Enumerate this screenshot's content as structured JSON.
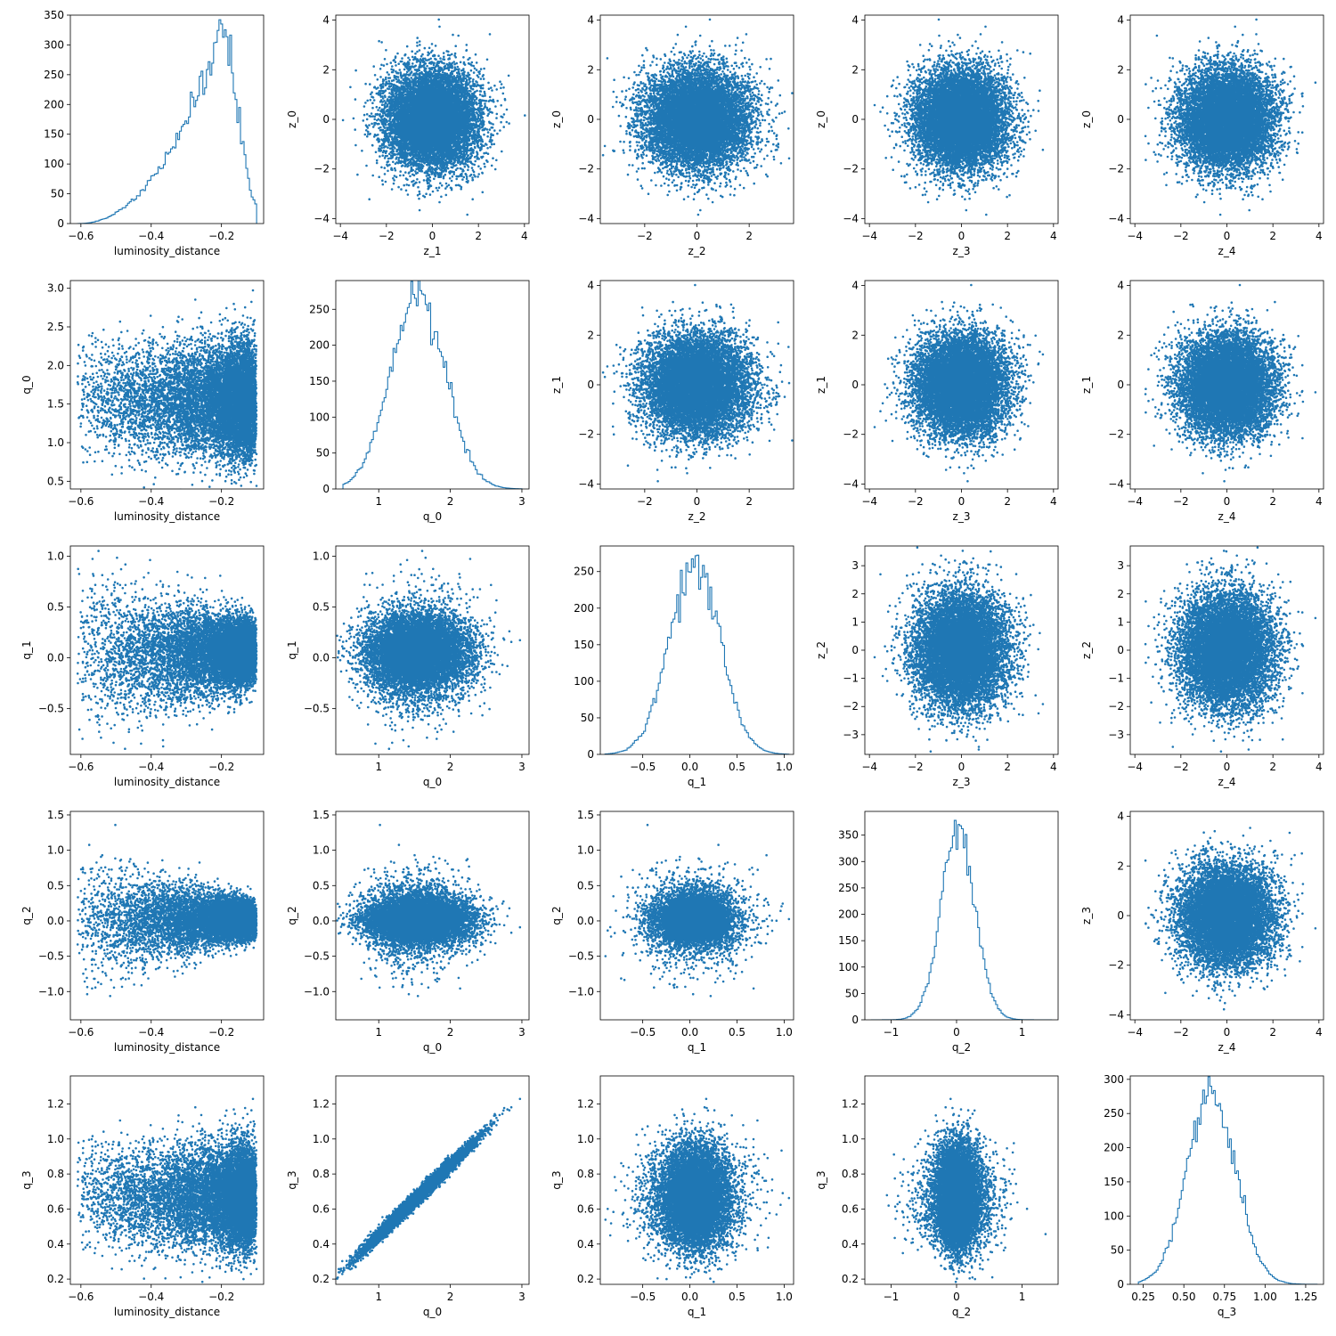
{
  "figure": {
    "color": "#1f77b4",
    "point_count": 10000,
    "grid": false,
    "legend": "none"
  },
  "chart_data": [
    {
      "type": "line",
      "row": 0,
      "col": 0,
      "panel": "hist",
      "xlabel": "luminosity_distance",
      "ylabel": "",
      "xlim": [
        -0.63,
        -0.08
      ],
      "ylim": [
        0,
        350
      ],
      "xticks": [
        -0.6,
        -0.4,
        -0.2
      ],
      "yticks": [
        0,
        50,
        100,
        150,
        200,
        250,
        300,
        350
      ],
      "dist": {
        "kind": "skew",
        "range": [
          -0.61,
          -0.1
        ],
        "peak": -0.2,
        "max": 335
      }
    },
    {
      "type": "scatter",
      "row": 0,
      "col": 1,
      "xlabel": "z_1",
      "ylabel": "z_0",
      "xlim": [
        -4.2,
        4.2
      ],
      "ylim": [
        -4.2,
        4.2
      ],
      "xticks": [
        -4,
        -2,
        0,
        2,
        4
      ],
      "yticks": [
        -4,
        -2,
        0,
        2,
        4
      ],
      "xvar": "z_1",
      "yvar": "z_0"
    },
    {
      "type": "scatter",
      "row": 0,
      "col": 2,
      "xlabel": "z_2",
      "ylabel": "z_0",
      "xlim": [
        -3.7,
        3.7
      ],
      "ylim": [
        -4.2,
        4.2
      ],
      "xticks": [
        -2,
        0,
        2
      ],
      "yticks": [
        -4,
        -2,
        0,
        2,
        4
      ],
      "xvar": "z_2",
      "yvar": "z_0"
    },
    {
      "type": "scatter",
      "row": 0,
      "col": 3,
      "xlabel": "z_3",
      "ylabel": "z_0",
      "xlim": [
        -4.2,
        4.2
      ],
      "ylim": [
        -4.2,
        4.2
      ],
      "xticks": [
        -4,
        -2,
        0,
        2,
        4
      ],
      "yticks": [
        -4,
        -2,
        0,
        2,
        4
      ],
      "xvar": "z_3",
      "yvar": "z_0"
    },
    {
      "type": "scatter",
      "row": 0,
      "col": 4,
      "xlabel": "z_4",
      "ylabel": "z_0",
      "xlim": [
        -4.2,
        4.2
      ],
      "ylim": [
        -4.2,
        4.2
      ],
      "xticks": [
        -4,
        -2,
        0,
        2,
        4
      ],
      "yticks": [
        -4,
        -2,
        0,
        2,
        4
      ],
      "xvar": "z_4",
      "yvar": "z_0"
    },
    {
      "type": "scatter",
      "row": 1,
      "col": 0,
      "xlabel": "luminosity_distance",
      "ylabel": "q_0",
      "xlim": [
        -0.63,
        -0.08
      ],
      "ylim": [
        0.4,
        3.1
      ],
      "xticks": [
        -0.6,
        -0.4,
        -0.2
      ],
      "yticks": [
        0.5,
        1.0,
        1.5,
        2.0,
        2.5,
        3.0
      ],
      "xvar": "ld",
      "yvar": "q0"
    },
    {
      "type": "line",
      "row": 1,
      "col": 1,
      "panel": "hist",
      "xlabel": "q_0",
      "ylabel": "",
      "xlim": [
        0.4,
        3.1
      ],
      "ylim": [
        0,
        290
      ],
      "xticks": [
        1,
        2,
        3
      ],
      "yticks": [
        0,
        50,
        100,
        150,
        200,
        250
      ],
      "dist": {
        "kind": "normal",
        "mean": 1.55,
        "sd": 0.38,
        "range": [
          0.5,
          3.0
        ],
        "max": 280
      }
    },
    {
      "type": "scatter",
      "row": 1,
      "col": 2,
      "xlabel": "z_2",
      "ylabel": "z_1",
      "xlim": [
        -3.7,
        3.7
      ],
      "ylim": [
        -4.2,
        4.2
      ],
      "xticks": [
        -2,
        0,
        2
      ],
      "yticks": [
        -4,
        -2,
        0,
        2,
        4
      ],
      "xvar": "z_2",
      "yvar": "z_1"
    },
    {
      "type": "scatter",
      "row": 1,
      "col": 3,
      "xlabel": "z_3",
      "ylabel": "z_1",
      "xlim": [
        -4.2,
        4.2
      ],
      "ylim": [
        -4.2,
        4.2
      ],
      "xticks": [
        -4,
        -2,
        0,
        2,
        4
      ],
      "yticks": [
        -4,
        -2,
        0,
        2,
        4
      ],
      "xvar": "z_3",
      "yvar": "z_1"
    },
    {
      "type": "scatter",
      "row": 1,
      "col": 4,
      "xlabel": "z_4",
      "ylabel": "z_1",
      "xlim": [
        -4.2,
        4.2
      ],
      "ylim": [
        -4.2,
        4.2
      ],
      "xticks": [
        -4,
        -2,
        0,
        2,
        4
      ],
      "yticks": [
        -4,
        -2,
        0,
        2,
        4
      ],
      "xvar": "z_4",
      "yvar": "z_1"
    },
    {
      "type": "scatter",
      "row": 2,
      "col": 0,
      "xlabel": "luminosity_distance",
      "ylabel": "q_1",
      "xlim": [
        -0.63,
        -0.08
      ],
      "ylim": [
        -0.95,
        1.1
      ],
      "xticks": [
        -0.6,
        -0.4,
        -0.2
      ],
      "yticks": [
        -0.5,
        0.0,
        0.5,
        1.0
      ],
      "xvar": "ld",
      "yvar": "q1"
    },
    {
      "type": "scatter",
      "row": 2,
      "col": 1,
      "xlabel": "q_0",
      "ylabel": "q_1",
      "xlim": [
        0.4,
        3.1
      ],
      "ylim": [
        -0.95,
        1.1
      ],
      "xticks": [
        1,
        2,
        3
      ],
      "yticks": [
        -0.5,
        0.0,
        0.5,
        1.0
      ],
      "xvar": "q0",
      "yvar": "q1"
    },
    {
      "type": "line",
      "row": 2,
      "col": 2,
      "panel": "hist",
      "xlabel": "q_1",
      "ylabel": "",
      "xlim": [
        -0.95,
        1.1
      ],
      "ylim": [
        0,
        285
      ],
      "xticks": [
        -0.5,
        0.0,
        0.5,
        1.0
      ],
      "yticks": [
        0,
        50,
        100,
        150,
        200,
        250
      ],
      "dist": {
        "kind": "normal",
        "mean": 0.05,
        "sd": 0.27,
        "range": [
          -0.9,
          1.05
        ],
        "max": 270
      }
    },
    {
      "type": "scatter",
      "row": 2,
      "col": 3,
      "xlabel": "z_3",
      "ylabel": "z_2",
      "xlim": [
        -4.2,
        4.2
      ],
      "ylim": [
        -3.7,
        3.7
      ],
      "xticks": [
        -4,
        -2,
        0,
        2,
        4
      ],
      "yticks": [
        -3,
        -2,
        -1,
        0,
        1,
        2,
        3
      ],
      "xvar": "z_3",
      "yvar": "z_2"
    },
    {
      "type": "scatter",
      "row": 2,
      "col": 4,
      "xlabel": "z_4",
      "ylabel": "z_2",
      "xlim": [
        -4.2,
        4.2
      ],
      "ylim": [
        -3.7,
        3.7
      ],
      "xticks": [
        -4,
        -2,
        0,
        2,
        4
      ],
      "yticks": [
        -3,
        -2,
        -1,
        0,
        1,
        2,
        3
      ],
      "xvar": "z_4",
      "yvar": "z_2"
    },
    {
      "type": "scatter",
      "row": 3,
      "col": 0,
      "xlabel": "luminosity_distance",
      "ylabel": "q_2",
      "xlim": [
        -0.63,
        -0.08
      ],
      "ylim": [
        -1.4,
        1.55
      ],
      "xticks": [
        -0.6,
        -0.4,
        -0.2
      ],
      "yticks": [
        -1.0,
        -0.5,
        0.0,
        0.5,
        1.0,
        1.5
      ],
      "xvar": "ld",
      "yvar": "q2"
    },
    {
      "type": "scatter",
      "row": 3,
      "col": 1,
      "xlabel": "q_0",
      "ylabel": "q_2",
      "xlim": [
        0.4,
        3.1
      ],
      "ylim": [
        -1.4,
        1.55
      ],
      "xticks": [
        1,
        2,
        3
      ],
      "yticks": [
        -1.0,
        -0.5,
        0.0,
        0.5,
        1.0,
        1.5
      ],
      "xvar": "q0",
      "yvar": "q2"
    },
    {
      "type": "scatter",
      "row": 3,
      "col": 2,
      "xlabel": "q_1",
      "ylabel": "q_2",
      "xlim": [
        -0.95,
        1.1
      ],
      "ylim": [
        -1.4,
        1.55
      ],
      "xticks": [
        -0.5,
        0.0,
        0.5,
        1.0
      ],
      "yticks": [
        -1.0,
        -0.5,
        0.0,
        0.5,
        1.0,
        1.5
      ],
      "xvar": "q1",
      "yvar": "q2"
    },
    {
      "type": "line",
      "row": 3,
      "col": 3,
      "panel": "hist",
      "xlabel": "q_2",
      "ylabel": "",
      "xlim": [
        -1.4,
        1.55
      ],
      "ylim": [
        0,
        395
      ],
      "xticks": [
        -1,
        0,
        1
      ],
      "yticks": [
        0,
        50,
        100,
        150,
        200,
        250,
        300,
        350
      ],
      "dist": {
        "kind": "normal",
        "mean": 0.02,
        "sd": 0.26,
        "range": [
          -1.3,
          1.45
        ],
        "max": 375
      }
    },
    {
      "type": "scatter",
      "row": 3,
      "col": 4,
      "xlabel": "z_4",
      "ylabel": "z_3",
      "xlim": [
        -4.2,
        4.2
      ],
      "ylim": [
        -4.2,
        4.2
      ],
      "xticks": [
        -4,
        -2,
        0,
        2,
        4
      ],
      "yticks": [
        -4,
        -2,
        0,
        2,
        4
      ],
      "xvar": "z_4",
      "yvar": "z_3"
    },
    {
      "type": "scatter",
      "row": 4,
      "col": 0,
      "xlabel": "luminosity_distance",
      "ylabel": "q_3",
      "xlim": [
        -0.63,
        -0.08
      ],
      "ylim": [
        0.17,
        1.36
      ],
      "xticks": [
        -0.6,
        -0.4,
        -0.2
      ],
      "yticks": [
        0.2,
        0.4,
        0.6,
        0.8,
        1.0,
        1.2
      ],
      "xvar": "ld",
      "yvar": "q3"
    },
    {
      "type": "scatter",
      "row": 4,
      "col": 1,
      "xlabel": "q_0",
      "ylabel": "q_3",
      "xlim": [
        0.4,
        3.1
      ],
      "ylim": [
        0.17,
        1.36
      ],
      "xticks": [
        1,
        2,
        3
      ],
      "yticks": [
        0.2,
        0.4,
        0.6,
        0.8,
        1.0,
        1.2
      ],
      "xvar": "q0",
      "yvar": "q3"
    },
    {
      "type": "scatter",
      "row": 4,
      "col": 2,
      "xlabel": "q_1",
      "ylabel": "q_3",
      "xlim": [
        -0.95,
        1.1
      ],
      "ylim": [
        0.17,
        1.36
      ],
      "xticks": [
        -0.5,
        0.0,
        0.5,
        1.0
      ],
      "yticks": [
        0.2,
        0.4,
        0.6,
        0.8,
        1.0,
        1.2
      ],
      "xvar": "q1",
      "yvar": "q3"
    },
    {
      "type": "scatter",
      "row": 4,
      "col": 3,
      "xlabel": "q_2",
      "ylabel": "q_3",
      "xlim": [
        -1.4,
        1.55
      ],
      "ylim": [
        0.17,
        1.36
      ],
      "xticks": [
        -1,
        0,
        1
      ],
      "yticks": [
        0.2,
        0.4,
        0.6,
        0.8,
        1.0,
        1.2
      ],
      "xvar": "q2",
      "yvar": "q3"
    },
    {
      "type": "line",
      "row": 4,
      "col": 4,
      "panel": "hist",
      "xlabel": "q_3",
      "ylabel": "",
      "xlim": [
        0.17,
        1.36
      ],
      "ylim": [
        0,
        305
      ],
      "xticks": [
        0.25,
        0.5,
        0.75,
        1.0,
        1.25
      ],
      "yticks": [
        0,
        50,
        100,
        150,
        200,
        250,
        300
      ],
      "dist": {
        "kind": "normal",
        "mean": 0.67,
        "sd": 0.15,
        "range": [
          0.22,
          1.32
        ],
        "max": 290
      }
    }
  ]
}
